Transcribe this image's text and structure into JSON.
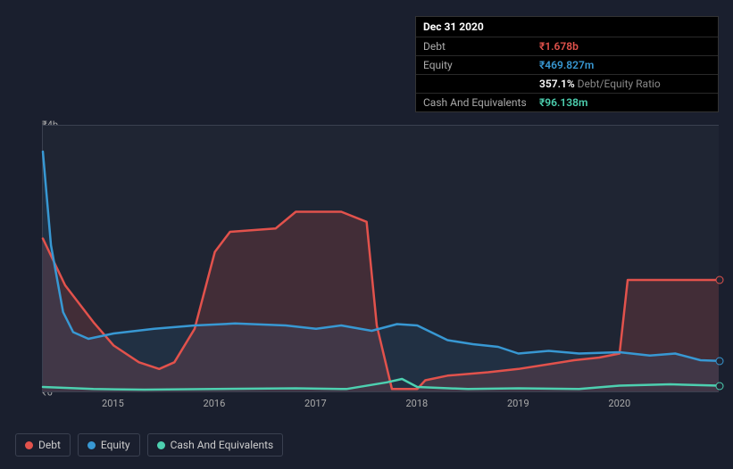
{
  "tooltip": {
    "date": "Dec 31 2020",
    "rows": [
      {
        "label": "Debt",
        "value": "₹1.678b",
        "cls": "v-debt"
      },
      {
        "label": "Equity",
        "value": "₹469.827m",
        "cls": "v-equity"
      },
      {
        "label": "",
        "value": "357.1%",
        "suffix": " Debt/Equity Ratio",
        "cls": "v-ratio"
      },
      {
        "label": "Cash And Equivalents",
        "value": "₹96.138m",
        "cls": "v-cash"
      }
    ]
  },
  "chart": {
    "type": "line-area",
    "background_color": "#1f2533",
    "grid_color": "#3a4050",
    "x_years": [
      "2015",
      "2016",
      "2017",
      "2018",
      "2019",
      "2020"
    ],
    "x_range": [
      2014.3,
      2020.98
    ],
    "y_range": [
      0,
      4.0
    ],
    "y_tick_top": "₹4b",
    "y_tick_bottom": "₹0",
    "y_label_fontsize": 11,
    "x_label_fontsize": 11,
    "line_width": 2.5,
    "series": {
      "debt": {
        "label": "Debt",
        "color": "#e2524c",
        "fill": true,
        "fill_opacity": 0.18,
        "end_marker": true,
        "points": [
          [
            2014.3,
            2.3
          ],
          [
            2014.52,
            1.6
          ],
          [
            2014.8,
            1.05
          ],
          [
            2015.0,
            0.7
          ],
          [
            2015.25,
            0.45
          ],
          [
            2015.45,
            0.35
          ],
          [
            2015.6,
            0.45
          ],
          [
            2015.8,
            0.95
          ],
          [
            2016.0,
            2.1
          ],
          [
            2016.15,
            2.4
          ],
          [
            2016.6,
            2.45
          ],
          [
            2016.8,
            2.7
          ],
          [
            2017.25,
            2.7
          ],
          [
            2017.5,
            2.55
          ],
          [
            2017.6,
            1.0
          ],
          [
            2017.75,
            0.05
          ],
          [
            2018.0,
            0.05
          ],
          [
            2018.08,
            0.18
          ],
          [
            2018.3,
            0.25
          ],
          [
            2018.7,
            0.3
          ],
          [
            2019.0,
            0.35
          ],
          [
            2019.3,
            0.42
          ],
          [
            2019.55,
            0.48
          ],
          [
            2019.8,
            0.52
          ],
          [
            2020.0,
            0.58
          ],
          [
            2020.08,
            1.68
          ],
          [
            2020.55,
            1.68
          ],
          [
            2020.98,
            1.68
          ]
        ]
      },
      "equity": {
        "label": "Equity",
        "color": "#3898d3",
        "fill": true,
        "fill_opacity": 0.1,
        "end_marker": true,
        "points": [
          [
            2014.3,
            3.6
          ],
          [
            2014.38,
            2.2
          ],
          [
            2014.5,
            1.2
          ],
          [
            2014.6,
            0.9
          ],
          [
            2014.75,
            0.8
          ],
          [
            2015.0,
            0.88
          ],
          [
            2015.4,
            0.95
          ],
          [
            2015.8,
            1.0
          ],
          [
            2016.2,
            1.03
          ],
          [
            2016.7,
            1.0
          ],
          [
            2017.0,
            0.95
          ],
          [
            2017.25,
            1.0
          ],
          [
            2017.55,
            0.92
          ],
          [
            2017.8,
            1.02
          ],
          [
            2018.0,
            1.0
          ],
          [
            2018.3,
            0.78
          ],
          [
            2018.55,
            0.72
          ],
          [
            2018.8,
            0.68
          ],
          [
            2019.0,
            0.58
          ],
          [
            2019.3,
            0.62
          ],
          [
            2019.6,
            0.58
          ],
          [
            2020.0,
            0.6
          ],
          [
            2020.3,
            0.55
          ],
          [
            2020.55,
            0.58
          ],
          [
            2020.8,
            0.48
          ],
          [
            2020.98,
            0.47
          ]
        ]
      },
      "cash": {
        "label": "Cash And Equivalents",
        "color": "#4dd0b0",
        "fill": false,
        "end_marker": true,
        "points": [
          [
            2014.3,
            0.08
          ],
          [
            2014.8,
            0.05
          ],
          [
            2015.3,
            0.04
          ],
          [
            2016.0,
            0.05
          ],
          [
            2016.8,
            0.06
          ],
          [
            2017.3,
            0.05
          ],
          [
            2017.7,
            0.15
          ],
          [
            2017.85,
            0.2
          ],
          [
            2018.0,
            0.08
          ],
          [
            2018.5,
            0.05
          ],
          [
            2019.0,
            0.06
          ],
          [
            2019.6,
            0.05
          ],
          [
            2020.0,
            0.1
          ],
          [
            2020.5,
            0.12
          ],
          [
            2020.98,
            0.1
          ]
        ]
      }
    }
  },
  "legend": [
    {
      "label": "Debt",
      "color": "#e2524c"
    },
    {
      "label": "Equity",
      "color": "#3898d3"
    },
    {
      "label": "Cash And Equivalents",
      "color": "#4dd0b0"
    }
  ]
}
